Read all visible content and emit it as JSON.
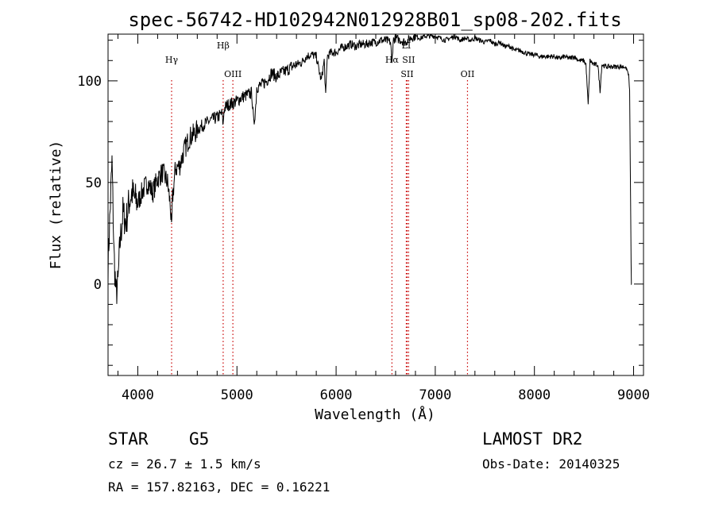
{
  "chart_data": {
    "type": "line",
    "title": "spec-56742-HD102942N012928B01_sp08-202.fits",
    "xlabel": "Wavelength (Å)",
    "ylabel": "Flux (relative)",
    "xlim": [
      3700,
      9100
    ],
    "ylim": [
      -45,
      123
    ],
    "xticks": [
      4000,
      5000,
      6000,
      7000,
      8000,
      9000
    ],
    "xtick_labels": [
      "4000",
      "5000",
      "6000",
      "7000",
      "8000",
      "9000"
    ],
    "yticks": [
      0,
      50,
      100
    ],
    "ytick_labels": [
      "0",
      "50",
      "100"
    ],
    "grid": false,
    "series": [
      {
        "name": "spectrum",
        "x": [
          3700,
          3720,
          3740,
          3760,
          3780,
          3800,
          3820,
          3850,
          3880,
          3910,
          3940,
          3970,
          4000,
          4050,
          4100,
          4150,
          4200,
          4250,
          4300,
          4330,
          4340,
          4350,
          4380,
          4420,
          4470,
          4520,
          4570,
          4620,
          4680,
          4750,
          4800,
          4850,
          4861,
          4870,
          4900,
          4950,
          5000,
          5050,
          5100,
          5150,
          5170,
          5190,
          5200,
          5250,
          5300,
          5350,
          5400,
          5450,
          5500,
          5550,
          5600,
          5650,
          5700,
          5750,
          5800,
          5850,
          5880,
          5895,
          5910,
          5950,
          6000,
          6050,
          6100,
          6150,
          6200,
          6250,
          6300,
          6350,
          6400,
          6450,
          6500,
          6550,
          6563,
          6575,
          6600,
          6650,
          6700,
          6750,
          6800,
          6850,
          6900,
          6950,
          7000,
          7050,
          7100,
          7150,
          7200,
          7250,
          7300,
          7350,
          7400,
          7450,
          7500,
          7550,
          7600,
          7650,
          7700,
          7750,
          7800,
          7850,
          7900,
          7950,
          8000,
          8050,
          8100,
          8150,
          8200,
          8250,
          8300,
          8350,
          8400,
          8450,
          8498,
          8520,
          8542,
          8560,
          8600,
          8640,
          8662,
          8680,
          8720,
          8760,
          8800,
          8850,
          8900,
          8930,
          8950,
          8960,
          8970,
          8975,
          8978,
          8980
        ],
        "y": [
          10,
          35,
          60,
          15,
          -5,
          0,
          20,
          35,
          30,
          40,
          45,
          42,
          40,
          46,
          50,
          45,
          52,
          55,
          50,
          38,
          25,
          42,
          57,
          58,
          66,
          72,
          74,
          77,
          79,
          81,
          82,
          84,
          78,
          86,
          88,
          89,
          90,
          92,
          93,
          94,
          78,
          88,
          97,
          98,
          100,
          104,
          102,
          104,
          105,
          107,
          108,
          109,
          112,
          113,
          112,
          100,
          110,
          92,
          112,
          114,
          114,
          116,
          117,
          118,
          117,
          118,
          118,
          119,
          119,
          120,
          120,
          119,
          108,
          120,
          121,
          120,
          119,
          121,
          122,
          121,
          122,
          122,
          122,
          121,
          120,
          121,
          122,
          120,
          121,
          120,
          121,
          120,
          119,
          120,
          118,
          119,
          117,
          117,
          115,
          115,
          114,
          113,
          113,
          112,
          112,
          112,
          112,
          111,
          112,
          111,
          112,
          110,
          110,
          108,
          88,
          110,
          108,
          108,
          95,
          108,
          107,
          107,
          107,
          107,
          107,
          106,
          103,
          95,
          40,
          10,
          0,
          0
        ]
      }
    ],
    "lines": [
      {
        "label": "Hγ",
        "x": 4341,
        "color": "#c80000",
        "label_row": 2
      },
      {
        "label": "Hβ",
        "x": 4861,
        "color": "#c80000",
        "label_row": 1
      },
      {
        "label": "OIII",
        "x": 4959,
        "color": "#c80000",
        "label_row": 3
      },
      {
        "label": "Hα",
        "x": 6563,
        "color": "#c80000",
        "label_row": 2
      },
      {
        "label": "SII",
        "x": 6716,
        "color": "#c80000",
        "label_row": 3
      },
      {
        "label": "SII",
        "x": 6731,
        "color": "#c80000",
        "label_row": 2
      },
      {
        "label": "LI",
        "x": 6708,
        "color": "#c80000",
        "label_row": 1
      },
      {
        "label": "OII",
        "x": 7325,
        "color": "#c80000",
        "label_row": 3
      }
    ]
  },
  "info": {
    "object_class": "STAR",
    "subclass": "G5",
    "survey": "LAMOST DR2",
    "cz": "cz = 26.7 ± 1.5 km/s",
    "obs_date": "Obs-Date: 20140325",
    "coords": "RA = 157.82163, DEC =   0.16221"
  }
}
